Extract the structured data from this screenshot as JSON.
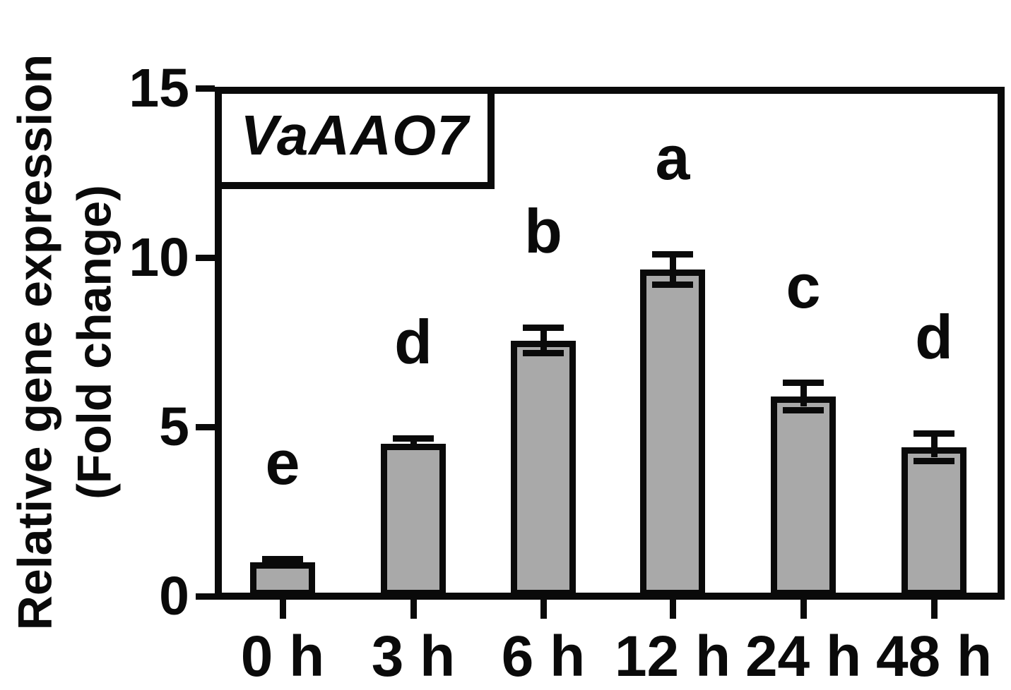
{
  "title_box": {
    "gene_label": "VaAAO7"
  },
  "y_axis": {
    "title_line1": "Relative gene expression",
    "title_line2": "(Fold change)"
  },
  "chart_data": {
    "type": "bar",
    "title": "VaAAO7",
    "categories": [
      "0 h",
      "3 h",
      "6 h",
      "12 h",
      "24 h",
      "48 h"
    ],
    "values": [
      1.0,
      4.5,
      7.55,
      9.65,
      5.9,
      4.4
    ],
    "errors": [
      0.1,
      0.15,
      0.38,
      0.45,
      0.4,
      0.4
    ],
    "significance_letters": [
      "e",
      "d",
      "b",
      "a",
      "c",
      "d"
    ],
    "xlabel": "",
    "ylabel": "Relative gene expression (Fold change)",
    "ylim": [
      0,
      15
    ],
    "yticks": [
      0,
      5,
      10,
      15
    ],
    "grid": false,
    "legend": false,
    "bar_color": "#a9a9a9",
    "outline_color": "#0a0a0a"
  }
}
